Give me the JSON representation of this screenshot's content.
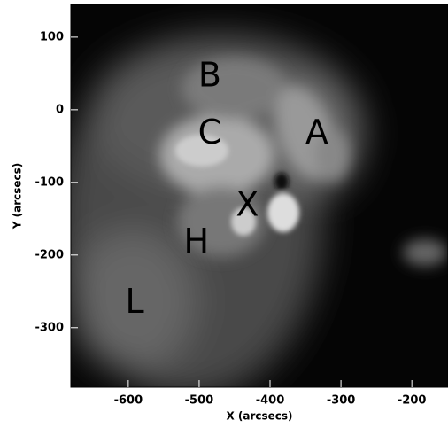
{
  "chart_data": {
    "type": "image",
    "xlabel": "X (arcsecs)",
    "ylabel": "Y (arcsecs)",
    "xlim": [
      -681,
      -149
    ],
    "ylim": [
      -382,
      145
    ],
    "xticks": [
      -600,
      -500,
      -400,
      -300,
      -200
    ],
    "yticks": [
      -300,
      -200,
      -100,
      0,
      100
    ],
    "annotations": [
      {
        "text": "B",
        "x": -485,
        "y": 45
      },
      {
        "text": "C",
        "x": -485,
        "y": -34
      },
      {
        "text": "A",
        "x": -334,
        "y": -34
      },
      {
        "text": "X",
        "x": -432,
        "y": -133
      },
      {
        "text": "H",
        "x": -504,
        "y": -184
      },
      {
        "text": "L",
        "x": -591,
        "y": -267
      }
    ]
  }
}
